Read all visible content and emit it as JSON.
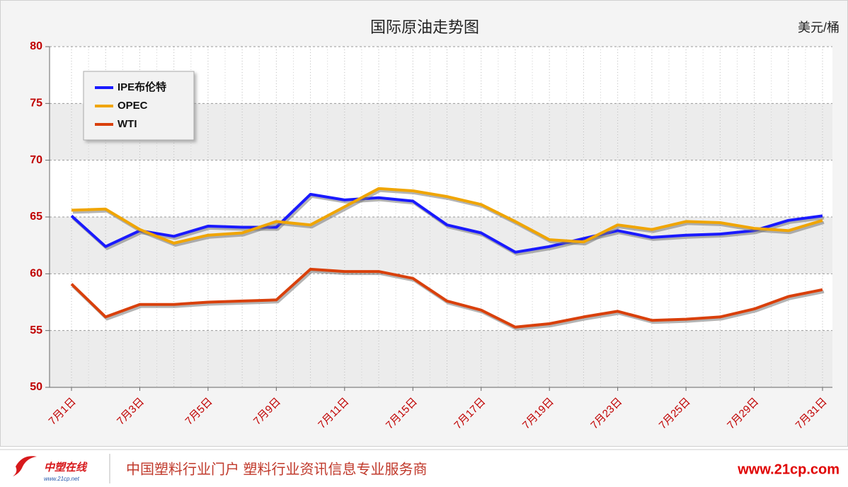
{
  "chart_data": {
    "type": "line",
    "title": "国际原油走势图",
    "unit_label": "美元/桶",
    "categories": [
      "7月1日",
      null,
      "7月3日",
      null,
      "7月5日",
      null,
      "7月9日",
      null,
      "7月11日",
      null,
      "7月15日",
      null,
      "7月17日",
      null,
      "7月19日",
      null,
      "7月23日",
      null,
      "7月25日",
      null,
      "7月29日",
      null,
      "7月31日"
    ],
    "series": [
      {
        "name": "IPE布伦特",
        "color": "#1a1aff",
        "values": [
          65.1,
          62.4,
          63.8,
          63.3,
          64.2,
          64.1,
          64.1,
          67.0,
          66.5,
          66.7,
          66.4,
          64.3,
          63.6,
          61.9,
          62.4,
          63.1,
          63.8,
          63.2,
          63.4,
          63.5,
          63.8,
          64.7,
          65.1
        ]
      },
      {
        "name": "OPEC",
        "color": "#f0a500",
        "values": [
          65.6,
          65.7,
          63.9,
          62.7,
          63.4,
          63.6,
          64.6,
          64.3,
          65.9,
          67.5,
          67.3,
          66.8,
          66.1,
          64.6,
          63.0,
          62.8,
          64.3,
          63.9,
          64.6,
          64.5,
          64.0,
          63.8,
          64.7
        ]
      },
      {
        "name": "WTI",
        "color": "#d9400b",
        "values": [
          59.1,
          56.2,
          57.3,
          57.3,
          57.5,
          57.6,
          57.7,
          60.4,
          60.2,
          60.2,
          59.6,
          57.6,
          56.8,
          55.3,
          55.6,
          56.2,
          56.7,
          55.9,
          56.0,
          56.2,
          56.9,
          58.0,
          58.6
        ]
      }
    ],
    "ylim": [
      50,
      80
    ],
    "yticks": [
      50,
      55,
      60,
      65,
      70,
      75,
      80
    ],
    "grid": true,
    "legend": "upper left"
  },
  "footer": {
    "logo_text": "中塑在线",
    "logo_url": "www.21cp.net",
    "slogan": "中国塑料行业门户 塑料行业资讯信息专业服务商",
    "site": "www.21cp.com"
  }
}
